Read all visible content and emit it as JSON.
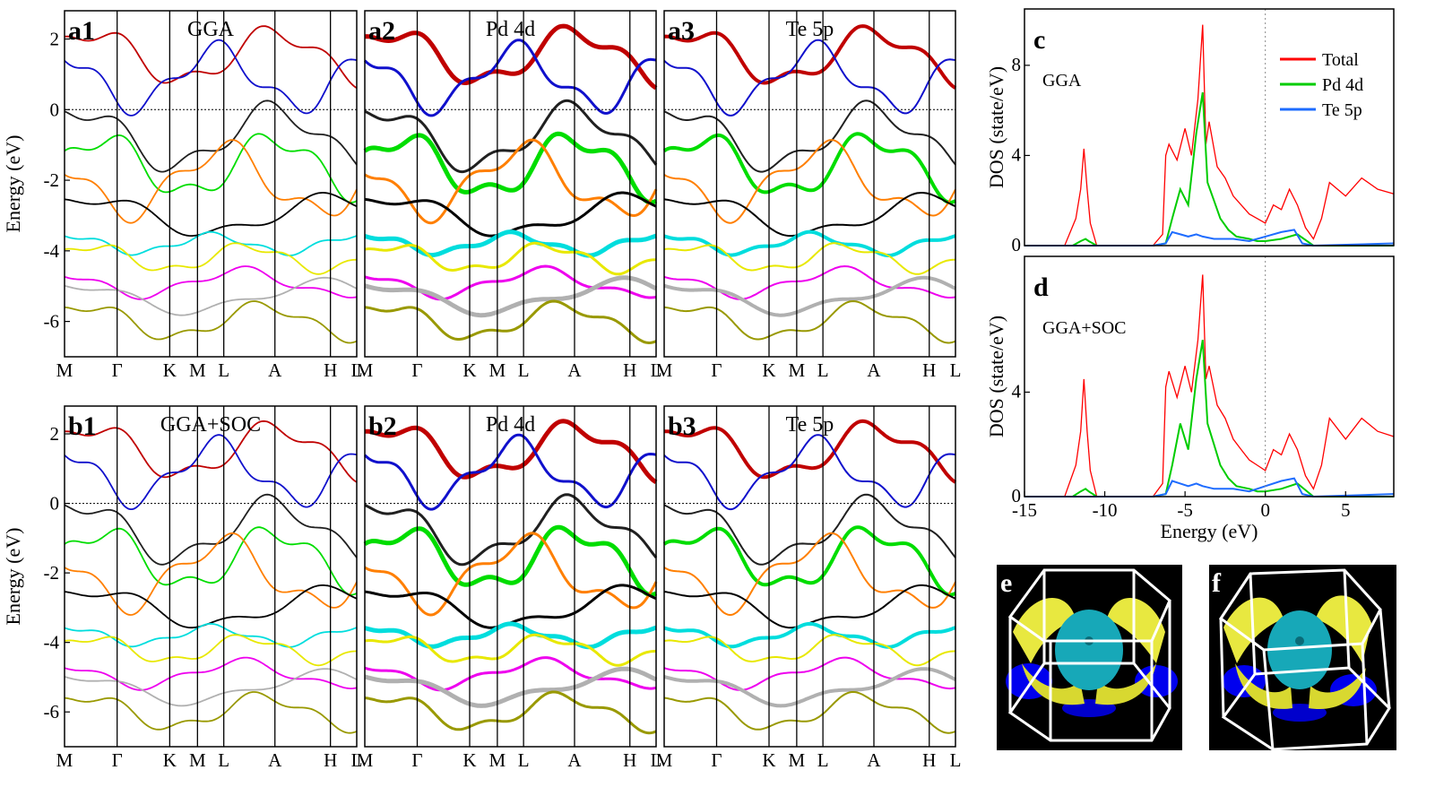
{
  "figure": {
    "band_ylabel": "Energy (eV)",
    "dos_ylabel": "DOS (state/eV)",
    "dos_xlabel": "Energy (eV)",
    "kpath": [
      "M",
      "Γ",
      "K",
      "M",
      "L",
      "A",
      "H",
      "L"
    ],
    "panel_e_label": "e",
    "panel_f_label": "f"
  },
  "colors": {
    "total": "#ff0000",
    "pd4d": "#00cc00",
    "te5p": "#1e6cff",
    "fermi": "#000000",
    "band_palette": [
      "#c00000",
      "#1010cc",
      "#202020",
      "#00dd00",
      "#ff7f00",
      "#000000",
      "#00dddd",
      "#e8e800",
      "#ee00ee",
      "#b0b0b0",
      "#999900"
    ]
  },
  "chart_data": [
    {
      "id": "a1",
      "type": "line",
      "label": "a1",
      "title": "GGA",
      "ylabel": "Energy (eV)",
      "xticks": [
        "M",
        "Γ",
        "K",
        "M",
        "L",
        "A",
        "H",
        "L"
      ],
      "ylim": [
        -7,
        2.8
      ],
      "yticks": [
        2,
        0,
        -2,
        -4,
        -6
      ],
      "series_note": "electronic band structure"
    },
    {
      "id": "a2",
      "type": "line",
      "label": "a2",
      "title": "Pd 4d",
      "ylim": [
        -7,
        2.8
      ],
      "xticks": [
        "M",
        "Γ",
        "K",
        "M",
        "L",
        "A",
        "H",
        "L"
      ]
    },
    {
      "id": "a3",
      "type": "line",
      "label": "a3",
      "title": "Te 5p",
      "ylim": [
        -7,
        2.8
      ],
      "xticks": [
        "M",
        "Γ",
        "K",
        "M",
        "L",
        "A",
        "H",
        "L"
      ]
    },
    {
      "id": "b1",
      "type": "line",
      "label": "b1",
      "title": "GGA+SOC",
      "ylabel": "Energy (eV)",
      "ylim": [
        -7,
        2.8
      ],
      "yticks": [
        2,
        0,
        -2,
        -4,
        -6
      ],
      "xticks": [
        "M",
        "Γ",
        "K",
        "M",
        "L",
        "A",
        "H",
        "L"
      ]
    },
    {
      "id": "b2",
      "type": "line",
      "label": "b2",
      "title": "Pd 4d",
      "ylim": [
        -7,
        2.8
      ],
      "xticks": [
        "M",
        "Γ",
        "K",
        "M",
        "L",
        "A",
        "H",
        "L"
      ]
    },
    {
      "id": "b3",
      "type": "line",
      "label": "b3",
      "title": "Te 5p",
      "ylim": [
        -7,
        2.8
      ],
      "xticks": [
        "M",
        "Γ",
        "K",
        "M",
        "L",
        "A",
        "H",
        "L"
      ]
    },
    {
      "id": "c",
      "type": "line",
      "label": "c",
      "annotation": "GGA",
      "xlim": [
        -15,
        8
      ],
      "ylim": [
        0,
        10.5
      ],
      "yticks": [
        0,
        4,
        8
      ],
      "ylabel": "DOS (state/eV)",
      "legend": [
        "Total",
        "Pd 4d",
        "Te 5p"
      ],
      "legend_position": "top-right",
      "series": [
        {
          "name": "Total",
          "x": [
            -15,
            -12.5,
            -11.8,
            -11.5,
            -11.3,
            -11.1,
            -10.9,
            -10.5,
            -7,
            -6.4,
            -6.2,
            -6,
            -5.5,
            -5,
            -4.6,
            -4.2,
            -3.9,
            -3.7,
            -3.5,
            -3,
            -2.5,
            -2,
            -1.5,
            -1,
            -0.5,
            0,
            0.5,
            1,
            1.5,
            2,
            2.5,
            3,
            3.5,
            4,
            5,
            6,
            7,
            8
          ],
          "y": [
            0,
            0,
            1.2,
            2.5,
            4.3,
            2.5,
            1.0,
            0,
            0,
            0.5,
            4.0,
            4.5,
            3.8,
            5.2,
            4.0,
            6.5,
            9.8,
            4.5,
            5.5,
            3.5,
            3.0,
            2.2,
            1.8,
            1.4,
            1.2,
            1.0,
            1.8,
            1.6,
            2.5,
            1.8,
            0.8,
            0.3,
            1.2,
            2.8,
            2.2,
            3.0,
            2.5,
            2.3
          ]
        },
        {
          "name": "Pd 4d",
          "x": [
            -15,
            -12,
            -11.5,
            -11.2,
            -11,
            -10.5,
            -7,
            -6.2,
            -5.8,
            -5.3,
            -4.8,
            -4.3,
            -3.9,
            -3.6,
            -3.2,
            -2.8,
            -2.3,
            -1.8,
            -1,
            -0.5,
            0,
            1,
            2,
            3,
            8
          ],
          "y": [
            0,
            0,
            0.2,
            0.3,
            0.2,
            0,
            0,
            0.1,
            1.2,
            2.5,
            1.8,
            5.0,
            6.8,
            2.8,
            2.0,
            1.2,
            0.7,
            0.4,
            0.3,
            0.2,
            0.2,
            0.3,
            0.5,
            0,
            0
          ]
        },
        {
          "name": "Te 5p",
          "x": [
            -15,
            -7,
            -6.2,
            -5.8,
            -5.3,
            -4.8,
            -4.3,
            -3.9,
            -3.2,
            -2.5,
            -2,
            -1,
            0,
            1,
            1.8,
            2.3,
            3,
            8
          ],
          "y": [
            0,
            0,
            0.1,
            0.6,
            0.5,
            0.4,
            0.5,
            0.4,
            0.3,
            0.3,
            0.3,
            0.2,
            0.4,
            0.6,
            0.7,
            0.1,
            0,
            0.1
          ]
        }
      ]
    },
    {
      "id": "d",
      "type": "line",
      "label": "d",
      "annotation": "GGA+SOC",
      "xlim": [
        -15,
        8
      ],
      "ylim": [
        0,
        9.2
      ],
      "yticks": [
        0,
        4
      ],
      "xticks": [
        -15,
        -10,
        -5,
        0,
        5
      ],
      "xlabel": "Energy (eV)",
      "ylabel": "DOS (state/eV)",
      "series": [
        {
          "name": "Total",
          "x": [
            -15,
            -12.5,
            -11.8,
            -11.5,
            -11.3,
            -11.1,
            -10.9,
            -10.5,
            -7,
            -6.4,
            -6.2,
            -6,
            -5.5,
            -5,
            -4.6,
            -4.2,
            -3.9,
            -3.7,
            -3.5,
            -3,
            -2.5,
            -2,
            -1.5,
            -1,
            -0.5,
            0,
            0.5,
            1,
            1.5,
            2,
            2.5,
            3,
            3.5,
            4,
            5,
            6,
            7,
            8
          ],
          "y": [
            0,
            0,
            1.2,
            2.5,
            4.5,
            2.5,
            1.0,
            0,
            0,
            0.5,
            4.2,
            4.8,
            3.8,
            5.0,
            4.0,
            6.0,
            8.5,
            4.5,
            5.0,
            3.5,
            3.0,
            2.2,
            1.8,
            1.4,
            1.2,
            1.0,
            1.8,
            1.6,
            2.4,
            1.8,
            0.8,
            0.3,
            1.2,
            3.0,
            2.2,
            3.0,
            2.5,
            2.3
          ]
        },
        {
          "name": "Pd 4d",
          "x": [
            -15,
            -12,
            -11.5,
            -11.2,
            -11,
            -10.5,
            -7,
            -6.2,
            -5.8,
            -5.3,
            -4.8,
            -4.3,
            -3.9,
            -3.6,
            -3.2,
            -2.8,
            -2.3,
            -1.8,
            -1,
            -0.5,
            0,
            1,
            2,
            3,
            8
          ],
          "y": [
            0,
            0,
            0.2,
            0.3,
            0.2,
            0,
            0,
            0.1,
            1.2,
            2.8,
            1.8,
            4.5,
            6.0,
            2.8,
            2.0,
            1.2,
            0.7,
            0.4,
            0.3,
            0.2,
            0.2,
            0.3,
            0.5,
            0,
            0
          ]
        },
        {
          "name": "Te 5p",
          "x": [
            -15,
            -7,
            -6.2,
            -5.8,
            -5.3,
            -4.8,
            -4.3,
            -3.9,
            -3.2,
            -2.5,
            -2,
            -1,
            0,
            1,
            1.8,
            2.3,
            3,
            8
          ],
          "y": [
            0,
            0,
            0.1,
            0.6,
            0.5,
            0.4,
            0.5,
            0.4,
            0.3,
            0.3,
            0.3,
            0.2,
            0.4,
            0.6,
            0.7,
            0.1,
            0,
            0.1
          ]
        }
      ]
    }
  ]
}
